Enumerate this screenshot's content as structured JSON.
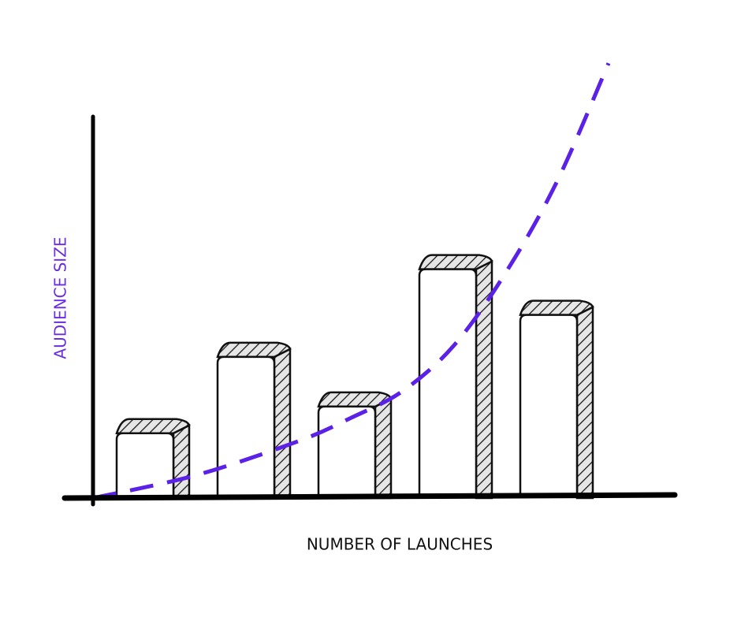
{
  "chart_data": [
    {
      "type": "bar",
      "categories": [
        null,
        null,
        null,
        null,
        null
      ],
      "values": [
        17,
        37,
        24,
        60,
        48
      ],
      "color": "#ffffff",
      "ylim": [
        0,
        100
      ],
      "xlabel": "NUMBER OF LAUNCHES",
      "ylabel": "AUDIENCE SIZE"
    },
    {
      "type": "line",
      "x": [
        0,
        2,
        4,
        5,
        6,
        7,
        8,
        9,
        10
      ],
      "values": [
        0,
        6,
        15,
        21,
        28,
        40,
        59,
        83,
        114
      ],
      "xlim": [
        0,
        10
      ],
      "ylim": [
        0,
        100
      ],
      "color": "#5b21e6",
      "dashed": true
    }
  ]
}
